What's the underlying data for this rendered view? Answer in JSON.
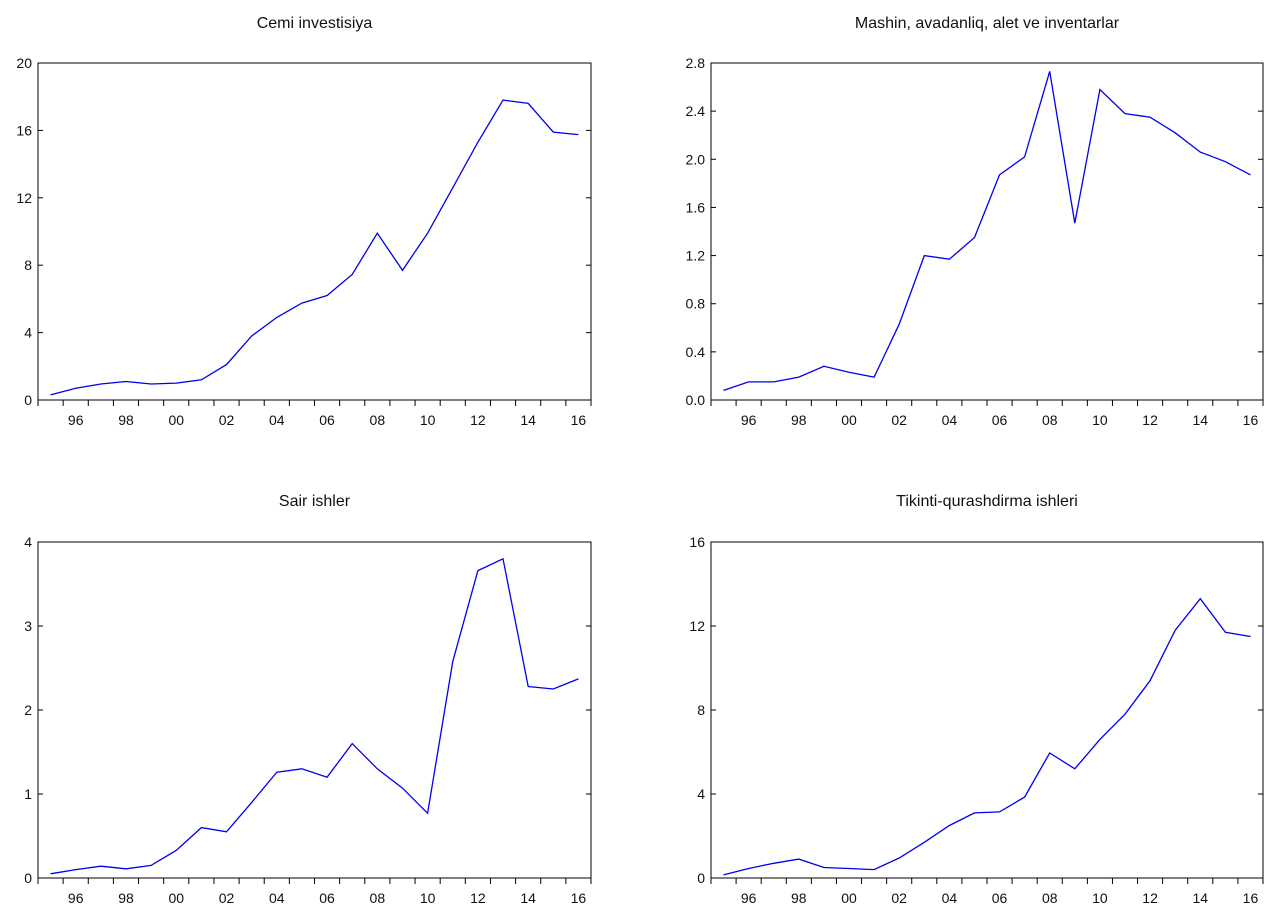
{
  "chart_data": [
    {
      "type": "line",
      "title": "Cemi investisiya",
      "xlabel": "",
      "ylabel": "",
      "x": [
        1995,
        1996,
        1997,
        1998,
        1999,
        2000,
        2001,
        2002,
        2003,
        2004,
        2005,
        2006,
        2007,
        2008,
        2009,
        2010,
        2011,
        2012,
        2013,
        2014,
        2015,
        2016
      ],
      "values": [
        0.3,
        0.7,
        0.95,
        1.1,
        0.95,
        1.0,
        1.2,
        2.1,
        3.8,
        4.9,
        5.75,
        6.2,
        7.45,
        9.9,
        7.7,
        9.9,
        12.6,
        15.3,
        17.8,
        17.6,
        15.9,
        15.75
      ],
      "ylim": [
        0,
        20
      ],
      "yticks": [
        "0",
        "4",
        "8",
        "12",
        "16",
        "20"
      ],
      "xticks": [
        "96",
        "98",
        "00",
        "02",
        "04",
        "06",
        "08",
        "10",
        "12",
        "14",
        "16"
      ],
      "color": "#0000ee"
    },
    {
      "type": "line",
      "title": "Mashin, avadanliq, alet ve inventarlar",
      "xlabel": "",
      "ylabel": "",
      "x": [
        1995,
        1996,
        1997,
        1998,
        1999,
        2000,
        2001,
        2002,
        2003,
        2004,
        2005,
        2006,
        2007,
        2008,
        2009,
        2010,
        2011,
        2012,
        2013,
        2014,
        2015,
        2016
      ],
      "values": [
        0.08,
        0.15,
        0.15,
        0.19,
        0.28,
        0.23,
        0.19,
        0.63,
        1.2,
        1.17,
        1.35,
        1.87,
        2.02,
        2.73,
        1.47,
        2.58,
        2.38,
        2.35,
        2.22,
        2.06,
        1.98,
        1.87
      ],
      "ylim": [
        0,
        2.8
      ],
      "yticks": [
        "0.0",
        "0.4",
        "0.8",
        "1.2",
        "1.6",
        "2.0",
        "2.4",
        "2.8"
      ],
      "xticks": [
        "96",
        "98",
        "00",
        "02",
        "04",
        "06",
        "08",
        "10",
        "12",
        "14",
        "16"
      ],
      "color": "#0000ee"
    },
    {
      "type": "line",
      "title": "Sair ishler",
      "xlabel": "",
      "ylabel": "",
      "x": [
        1995,
        1996,
        1997,
        1998,
        1999,
        2000,
        2001,
        2002,
        2003,
        2004,
        2005,
        2006,
        2007,
        2008,
        2009,
        2010,
        2011,
        2012,
        2013,
        2014,
        2015,
        2016
      ],
      "values": [
        0.05,
        0.1,
        0.14,
        0.11,
        0.15,
        0.33,
        0.6,
        0.55,
        0.9,
        1.26,
        1.3,
        1.2,
        1.6,
        1.3,
        1.07,
        0.77,
        2.58,
        3.66,
        3.8,
        2.28,
        2.25,
        2.37
      ],
      "ylim": [
        0,
        4
      ],
      "yticks": [
        "0",
        "1",
        "2",
        "3",
        "4"
      ],
      "xticks": [
        "96",
        "98",
        "00",
        "02",
        "04",
        "06",
        "08",
        "10",
        "12",
        "14",
        "16"
      ],
      "color": "#0000ee"
    },
    {
      "type": "line",
      "title": "Tikinti-qurashdirma ishleri",
      "xlabel": "",
      "ylabel": "",
      "x": [
        1995,
        1996,
        1997,
        1998,
        1999,
        2000,
        2001,
        2002,
        2003,
        2004,
        2005,
        2006,
        2007,
        2008,
        2009,
        2010,
        2011,
        2012,
        2013,
        2014,
        2015,
        2016
      ],
      "values": [
        0.15,
        0.45,
        0.7,
        0.9,
        0.5,
        0.45,
        0.4,
        0.95,
        1.7,
        2.5,
        3.1,
        3.15,
        3.85,
        5.95,
        5.2,
        6.6,
        7.8,
        9.4,
        11.8,
        13.3,
        11.7,
        11.5
      ],
      "ylim": [
        0,
        16
      ],
      "yticks": [
        "0",
        "4",
        "8",
        "12",
        "16"
      ],
      "xticks": [
        "96",
        "98",
        "00",
        "02",
        "04",
        "06",
        "08",
        "10",
        "12",
        "14",
        "16"
      ],
      "color": "#0000ee"
    }
  ]
}
